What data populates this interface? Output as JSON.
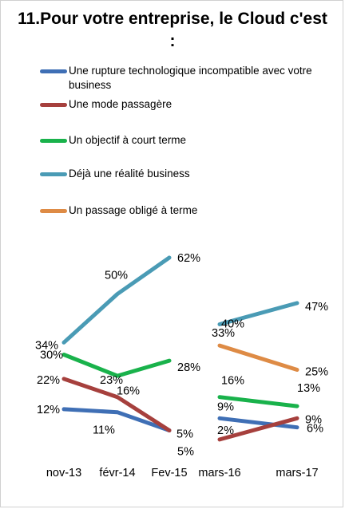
{
  "chart_data": {
    "type": "line",
    "title": "11.Pour votre entreprise, le Cloud c'est :",
    "categories": [
      "nov-13",
      "févr-14",
      "Fev-15",
      "mars-16",
      "mars-17"
    ],
    "series": [
      {
        "name": "Une rupture technologique incompatible avec votre business",
        "color": "#3F6FB5",
        "values": [
          12,
          11,
          5,
          9,
          6
        ],
        "labels": [
          "12%",
          "11%",
          "5%",
          "9%",
          "6%"
        ]
      },
      {
        "name": "Une mode passagère",
        "color": "#A6403D",
        "values": [
          22,
          16,
          5,
          2,
          9
        ],
        "labels": [
          "22%",
          "16%",
          "5%",
          "2%",
          "9%"
        ]
      },
      {
        "name": "Un objectif à court terme",
        "color": "#19B24B",
        "values": [
          30,
          23,
          28,
          16,
          13
        ],
        "labels": [
          "30%",
          "23%",
          "28%",
          "16%",
          "13%"
        ]
      },
      {
        "name": "Déjà une réalité business",
        "color": "#4A9BB5",
        "values": [
          34,
          50,
          62,
          40,
          47
        ],
        "labels": [
          "34%",
          "50%",
          "62%",
          "40%",
          "47%"
        ]
      },
      {
        "name": "Un passage obligé à terme",
        "color": "#DE8B45",
        "values": [
          null,
          null,
          null,
          33,
          25
        ],
        "labels": [
          "",
          "",
          "",
          "33%",
          "25%"
        ]
      }
    ],
    "segments": [
      [
        0,
        2
      ],
      [
        3,
        4
      ]
    ],
    "grid": false,
    "legend_position": "top"
  }
}
